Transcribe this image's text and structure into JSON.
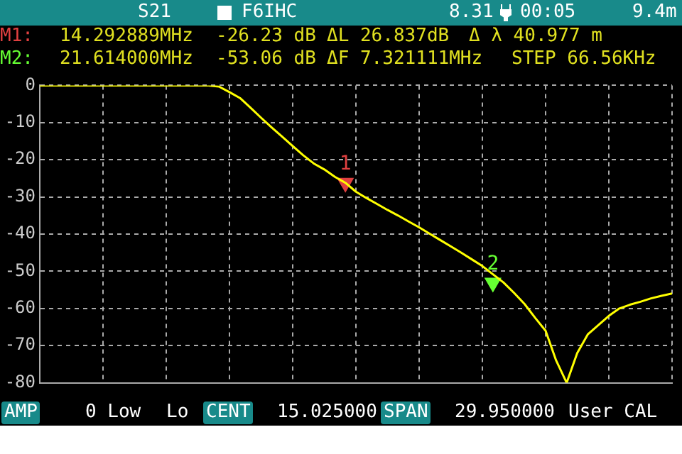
{
  "chart_data": {
    "type": "line",
    "categories": [
      null,
      null,
      null,
      null,
      null,
      null,
      null,
      null,
      null,
      null,
      null,
      null,
      null,
      null,
      null,
      null,
      null,
      null,
      null,
      null,
      null,
      null,
      null,
      null,
      null,
      null,
      null,
      null,
      null,
      null,
      null,
      null,
      null,
      null,
      null,
      null,
      null,
      null,
      null,
      null,
      null,
      null,
      null,
      null,
      null,
      null,
      null,
      null,
      null,
      null,
      null,
      null,
      null,
      null,
      null,
      null,
      null,
      null,
      null,
      null,
      null
    ],
    "series": [
      {
        "color": "#ffff00",
        "values": [
          0,
          0,
          0,
          0,
          0,
          0,
          0,
          0,
          0,
          0,
          0,
          0,
          0,
          0,
          0,
          0,
          0,
          -0.3,
          -1.8,
          -3.4,
          -6,
          -8.7,
          -11.3,
          -13.8,
          -16.3,
          -18.8,
          -21,
          -22.6,
          -24.6,
          -26.2,
          -28.6,
          -30.3,
          -31.9,
          -33.5,
          -35,
          -36.6,
          -38.2,
          -39.9,
          -41.6,
          -43.3,
          -45,
          -46.8,
          -48.6,
          -50.8,
          -53,
          -55.8,
          -58.8,
          -62.5,
          -66,
          -74,
          -80,
          -72,
          -67,
          -64.5,
          -62,
          -60,
          -59,
          -58.2,
          -57.3,
          -56.6,
          -56
        ]
      },
      {
        "type": "scatter",
        "name": "1",
        "color": "#e04040",
        "marker": "triangle",
        "values": [
          null,
          null,
          null,
          null,
          null,
          null,
          null,
          null,
          null,
          null,
          null,
          null,
          null,
          null,
          null,
          null,
          null,
          null,
          null,
          null,
          null,
          null,
          null,
          null,
          null,
          null,
          null,
          null,
          null,
          -26.23,
          null,
          null,
          null,
          null,
          null,
          null,
          null,
          null,
          null,
          null,
          null,
          null,
          null,
          null,
          null,
          null,
          null,
          null,
          null,
          null,
          null,
          null,
          null,
          null,
          null,
          null,
          null,
          null,
          null,
          null,
          null
        ]
      },
      {
        "type": "scatter",
        "name": "2",
        "color": "#66ff33",
        "marker": "triangle",
        "values": [
          null,
          null,
          null,
          null,
          null,
          null,
          null,
          null,
          null,
          null,
          null,
          null,
          null,
          null,
          null,
          null,
          null,
          null,
          null,
          null,
          null,
          null,
          null,
          null,
          null,
          null,
          null,
          null,
          null,
          null,
          null,
          null,
          null,
          null,
          null,
          null,
          null,
          null,
          null,
          null,
          null,
          null,
          null,
          -53.06,
          null,
          null,
          null,
          null,
          null,
          null,
          null,
          null,
          null,
          null,
          null,
          null,
          null,
          null,
          null,
          null,
          null
        ]
      }
    ],
    "ylim": [
      -80,
      0
    ],
    "yticks": [
      0,
      -10,
      -20,
      -30,
      -40,
      -50,
      -60,
      -70,
      -80
    ],
    "grid": true,
    "tick_labels": "y",
    "marker": "none",
    "line_style": "solid",
    "annotations": [
      "S21",
      "F6IHC",
      "8.31",
      "00:05",
      "9.4m",
      "M1:",
      "14.292889MHz",
      "-26.23 dB",
      "ΔL 26.837dB",
      "Δ λ 40.977 m",
      "M2:",
      "21.614000MHz",
      "-53.06 dB",
      "ΔF 7.321111MHz",
      "STEP 66.56KHz",
      "AMP",
      "0 Low",
      "Lo",
      "CENT",
      "15.025000",
      "SPAN",
      "29.950000",
      "User CAL"
    ]
  }
}
